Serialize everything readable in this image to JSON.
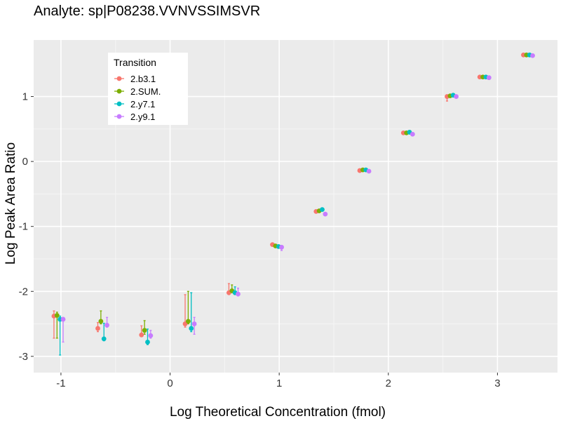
{
  "chart_data": {
    "type": "scatter",
    "title": "Analyte: sp|P08238.VVNVSSIMSVR",
    "xlabel": "Log Theoretical Concentration (fmol)",
    "ylabel": "Log Peak Area Ratio",
    "xlim": [
      -1.25,
      3.55
    ],
    "ylim": [
      -3.25,
      1.87
    ],
    "x_ticks": [
      -1,
      0,
      1,
      2,
      3
    ],
    "y_ticks": [
      -3,
      -2,
      -1,
      0,
      1
    ],
    "grid": true,
    "legend": {
      "title": "Transition",
      "position": "top-left"
    },
    "x": [
      -1.022,
      -0.62,
      -0.22,
      0.18,
      0.581,
      0.98,
      1.38,
      1.78,
      2.18,
      2.58,
      2.88,
      3.28
    ],
    "series": [
      {
        "name": "2.b3.1",
        "color": "#F8766D",
        "values": [
          -2.38,
          -2.57,
          -2.67,
          -2.5,
          -2.02,
          -1.28,
          -0.77,
          -0.14,
          0.44,
          1.0,
          1.3,
          1.64
        ],
        "error_low": [
          -2.72,
          -2.62,
          -2.69,
          -2.55,
          -2.05,
          -1.3,
          -0.79,
          -0.15,
          0.43,
          0.93,
          1.29,
          1.63
        ],
        "error_high": [
          -2.3,
          -2.48,
          -2.53,
          -2.05,
          -1.88,
          -1.27,
          -0.75,
          -0.13,
          0.46,
          1.02,
          1.31,
          1.65
        ]
      },
      {
        "name": "2.SUM.",
        "color": "#7CAE00",
        "values": [
          -2.37,
          -2.46,
          -2.6,
          -2.46,
          -1.99,
          -1.3,
          -0.76,
          -0.13,
          0.44,
          1.01,
          1.3,
          1.64
        ],
        "error_low": [
          -2.72,
          -2.5,
          -2.66,
          -2.5,
          -2.02,
          -1.32,
          -0.78,
          -0.14,
          0.43,
          0.99,
          1.29,
          1.63
        ],
        "error_high": [
          -2.32,
          -2.3,
          -2.45,
          -2.0,
          -1.9,
          -1.28,
          -0.74,
          -0.12,
          0.45,
          1.03,
          1.31,
          1.65
        ]
      },
      {
        "name": "2.y7.1",
        "color": "#00BFC4",
        "values": [
          -2.43,
          -2.73,
          -2.78,
          -2.57,
          -2.02,
          -1.31,
          -0.74,
          -0.13,
          0.45,
          1.02,
          1.3,
          1.64
        ],
        "error_low": [
          -2.98,
          -2.76,
          -2.82,
          -2.62,
          -2.05,
          -1.33,
          -0.76,
          -0.14,
          0.44,
          1.0,
          1.29,
          1.63
        ],
        "error_high": [
          -2.38,
          -2.49,
          -2.58,
          -2.02,
          -1.93,
          -1.29,
          -0.72,
          -0.12,
          0.46,
          1.04,
          1.31,
          1.65
        ]
      },
      {
        "name": "2.y9.1",
        "color": "#C77CFF",
        "values": [
          -2.43,
          -2.52,
          -2.68,
          -2.5,
          -2.04,
          -1.32,
          -0.81,
          -0.15,
          0.42,
          1.0,
          1.29,
          1.63
        ],
        "error_low": [
          -2.78,
          -2.55,
          -2.72,
          -2.66,
          -2.07,
          -1.37,
          -0.83,
          -0.16,
          0.41,
          0.98,
          1.28,
          1.62
        ],
        "error_high": [
          -2.4,
          -2.4,
          -2.6,
          -2.4,
          -1.95,
          -1.3,
          -0.79,
          -0.14,
          0.43,
          1.02,
          1.3,
          1.64
        ]
      }
    ]
  }
}
